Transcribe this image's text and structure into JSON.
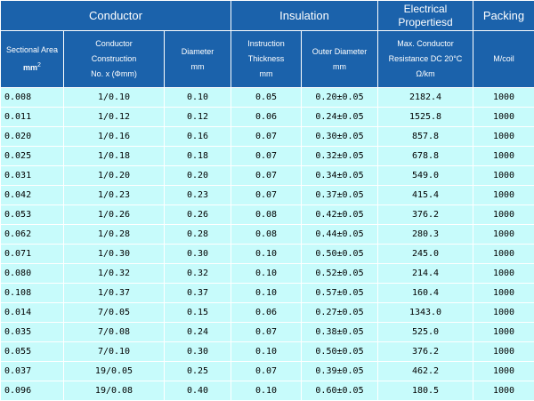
{
  "header": {
    "conductor": "Conductor",
    "insulation": "Insulation",
    "electrical": "Electrical Propertiesd",
    "packing": "Packing",
    "sectional_area": "Sectional Area",
    "sectional_unit": "mm",
    "sectional_sup": "2",
    "construction_l1": "Conductor",
    "construction_l2": "Construction",
    "construction_l3": "No. x  (Φmm)",
    "diameter_l1": "Diameter",
    "diameter_l2": "mm",
    "thickness_l1": "Instruction",
    "thickness_l2": "Thickness",
    "thickness_l3": "mm",
    "outer_l1": "Outer Diameter",
    "outer_l2": "mm",
    "resistance_l1": "Max. Conductor",
    "resistance_l2": "Resistance DC 20°C",
    "resistance_l3": "Ω/km",
    "packing_unit": "M/coil"
  },
  "rows": [
    {
      "area": "0.008",
      "construction": "1/0.10",
      "diameter": "0.10",
      "thickness": "0.05",
      "outer": "0.20±0.05",
      "resistance": "2182.4",
      "packing": "1000"
    },
    {
      "area": "0.011",
      "construction": "1/0.12",
      "diameter": "0.12",
      "thickness": "0.06",
      "outer": "0.24±0.05",
      "resistance": "1525.8",
      "packing": "1000"
    },
    {
      "area": "0.020",
      "construction": "1/0.16",
      "diameter": "0.16",
      "thickness": "0.07",
      "outer": "0.30±0.05",
      "resistance": "857.8",
      "packing": "1000"
    },
    {
      "area": "0.025",
      "construction": "1/0.18",
      "diameter": "0.18",
      "thickness": "0.07",
      "outer": "0.32±0.05",
      "resistance": "678.8",
      "packing": "1000"
    },
    {
      "area": "0.031",
      "construction": "1/0.20",
      "diameter": "0.20",
      "thickness": "0.07",
      "outer": "0.34±0.05",
      "resistance": "549.0",
      "packing": "1000"
    },
    {
      "area": "0.042",
      "construction": "1/0.23",
      "diameter": "0.23",
      "thickness": "0.07",
      "outer": "0.37±0.05",
      "resistance": "415.4",
      "packing": "1000"
    },
    {
      "area": "0.053",
      "construction": "1/0.26",
      "diameter": "0.26",
      "thickness": "0.08",
      "outer": "0.42±0.05",
      "resistance": "376.2",
      "packing": "1000"
    },
    {
      "area": "0.062",
      "construction": "1/0.28",
      "diameter": "0.28",
      "thickness": "0.08",
      "outer": "0.44±0.05",
      "resistance": "280.3",
      "packing": "1000"
    },
    {
      "area": "0.071",
      "construction": "1/0.30",
      "diameter": "0.30",
      "thickness": "0.10",
      "outer": "0.50±0.05",
      "resistance": "245.0",
      "packing": "1000"
    },
    {
      "area": "0.080",
      "construction": "1/0.32",
      "diameter": "0.32",
      "thickness": "0.10",
      "outer": "0.52±0.05",
      "resistance": "214.4",
      "packing": "1000"
    },
    {
      "area": "0.108",
      "construction": "1/0.37",
      "diameter": "0.37",
      "thickness": "0.10",
      "outer": "0.57±0.05",
      "resistance": "160.4",
      "packing": "1000"
    },
    {
      "area": "0.014",
      "construction": "7/0.05",
      "diameter": "0.15",
      "thickness": "0.06",
      "outer": "0.27±0.05",
      "resistance": "1343.0",
      "packing": "1000"
    },
    {
      "area": "0.035",
      "construction": "7/0.08",
      "diameter": "0.24",
      "thickness": "0.07",
      "outer": "0.38±0.05",
      "resistance": "525.0",
      "packing": "1000"
    },
    {
      "area": "0.055",
      "construction": "7/0.10",
      "diameter": "0.30",
      "thickness": "0.10",
      "outer": "0.50±0.05",
      "resistance": "376.2",
      "packing": "1000"
    },
    {
      "area": "0.037",
      "construction": "19/0.05",
      "diameter": "0.25",
      "thickness": "0.07",
      "outer": "0.39±0.05",
      "resistance": "462.2",
      "packing": "1000"
    },
    {
      "area": "0.096",
      "construction": "19/0.08",
      "diameter": "0.40",
      "thickness": "0.10",
      "outer": "0.60±0.05",
      "resistance": "180.5",
      "packing": "1000"
    }
  ]
}
